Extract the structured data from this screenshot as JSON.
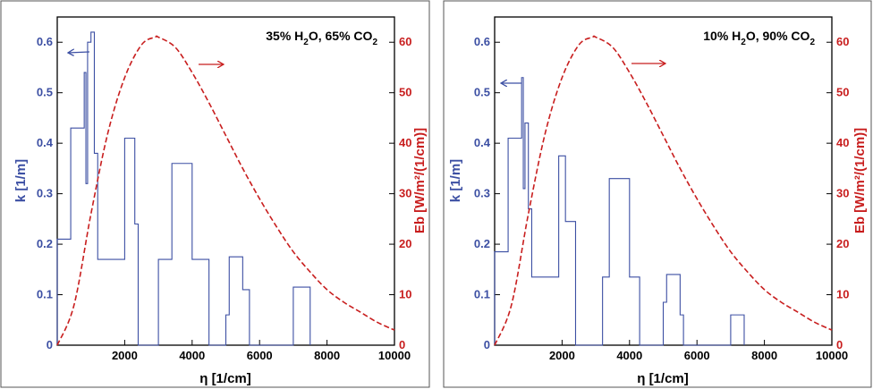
{
  "chart_data": [
    {
      "type": "line",
      "annotation": {
        "prefix": "35% H",
        "sub1": "2",
        "middle": "O, 65% CO",
        "sub2": "2"
      },
      "xlabel": "η [1/cm]",
      "ylabel_left": "k [1/m]",
      "ylabel_right": "Eb [W/m²/(1/cm)]",
      "xlim": [
        0,
        10000
      ],
      "ylim_left": [
        0,
        0.65
      ],
      "ylim_right": [
        0,
        65
      ],
      "x_ticks": [
        2000,
        4000,
        6000,
        8000,
        10000
      ],
      "y_ticks_left": [
        0,
        0.1,
        0.2,
        0.3,
        0.4,
        0.5,
        0.6
      ],
      "y_ticks_right": [
        0,
        10,
        20,
        30,
        40,
        50,
        60
      ],
      "grid": false,
      "series": [
        {
          "axis": "left",
          "style": "step",
          "color": "#3c4fa3",
          "x": [
            0,
            400,
            800,
            850,
            900,
            1000,
            1100,
            1200,
            2000,
            2300,
            2400,
            3000,
            3400,
            4000,
            4500,
            5000,
            5100,
            5500,
            5700,
            7000,
            7500
          ],
          "y": [
            0.21,
            0.43,
            0.54,
            0.32,
            0.6,
            0.62,
            0.38,
            0.17,
            0.41,
            0.24,
            0.0,
            0.17,
            0.36,
            0.17,
            0.0,
            0.06,
            0.175,
            0.11,
            0.0,
            0.115,
            0.0
          ]
        },
        {
          "axis": "right",
          "style": "dashed",
          "color": "#c81e1e",
          "x": [
            0,
            500,
            1000,
            1500,
            2000,
            2500,
            2900,
            3000,
            3500,
            4000,
            4500,
            5000,
            5500,
            6000,
            6500,
            7000,
            7500,
            8000,
            8500,
            9000,
            9500,
            10000
          ],
          "y": [
            0,
            8,
            26,
            42,
            53,
            59.5,
            61,
            61,
            59,
            54,
            48,
            41.5,
            35,
            29,
            23.5,
            18.5,
            14.5,
            11,
            8.5,
            6.5,
            4.5,
            3
          ]
        }
      ]
    },
    {
      "type": "line",
      "annotation": {
        "prefix": "10% H",
        "sub1": "2",
        "middle": "O, 90% CO",
        "sub2": "2"
      },
      "xlabel": "η [1/cm]",
      "ylabel_left": "k [1/m]",
      "ylabel_right": "Eb [W/m²/(1/cm)]",
      "xlim": [
        0,
        10000
      ],
      "ylim_left": [
        0,
        0.65
      ],
      "ylim_right": [
        0,
        65
      ],
      "x_ticks": [
        2000,
        4000,
        6000,
        8000,
        10000
      ],
      "y_ticks_left": [
        0,
        0.1,
        0.2,
        0.3,
        0.4,
        0.5,
        0.6
      ],
      "y_ticks_right": [
        0,
        10,
        20,
        30,
        40,
        50,
        60
      ],
      "grid": false,
      "series": [
        {
          "axis": "left",
          "style": "step",
          "color": "#3c4fa3",
          "x": [
            0,
            400,
            800,
            850,
            900,
            1000,
            1100,
            1900,
            2100,
            2400,
            3200,
            3400,
            4000,
            4300,
            5000,
            5100,
            5500,
            5600,
            7000,
            7400
          ],
          "y": [
            0.185,
            0.41,
            0.53,
            0.31,
            0.44,
            0.27,
            0.135,
            0.375,
            0.245,
            0.0,
            0.135,
            0.33,
            0.135,
            0.0,
            0.085,
            0.14,
            0.06,
            0.0,
            0.06,
            0.0
          ]
        },
        {
          "axis": "right",
          "style": "dashed",
          "color": "#c81e1e",
          "x": [
            0,
            500,
            1000,
            1500,
            2000,
            2500,
            2900,
            3000,
            3500,
            4000,
            4500,
            5000,
            5500,
            6000,
            6500,
            7000,
            7500,
            8000,
            8500,
            9000,
            9500,
            10000
          ],
          "y": [
            0,
            8,
            26,
            42,
            53,
            59.5,
            61,
            61,
            59,
            54,
            48,
            41.5,
            35,
            29,
            23.5,
            18.5,
            14.5,
            11,
            8.5,
            6.5,
            4.5,
            3
          ]
        }
      ]
    }
  ]
}
